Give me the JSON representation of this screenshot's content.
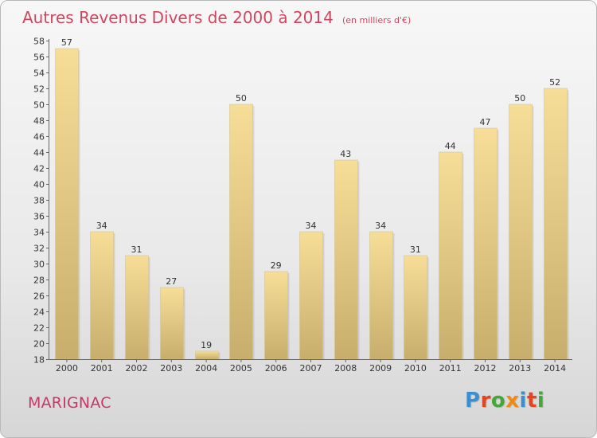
{
  "header": {
    "title": "Autres Revenus Divers de 2000 à 2014",
    "subtitle": "(en milliers d'€)"
  },
  "footer": {
    "place": "MARIGNAC",
    "logo_text": "Proxiti"
  },
  "colors": {
    "title": "#d0465f",
    "place": "#c9366a",
    "bar_light": "#f6de98",
    "bar_dark": "#c8ae6c",
    "logo": [
      "#3b8fd0",
      "#e2451f",
      "#47a63b",
      "#f08b12",
      "#3b8fd0",
      "#e2451f",
      "#47a63b"
    ]
  },
  "chart_data": {
    "type": "bar",
    "categories": [
      "2000",
      "2001",
      "2002",
      "2003",
      "2004",
      "2005",
      "2006",
      "2007",
      "2008",
      "2009",
      "2010",
      "2011",
      "2012",
      "2013",
      "2014"
    ],
    "values": [
      57,
      34,
      31,
      27,
      19,
      50,
      29,
      34,
      43,
      34,
      31,
      44,
      47,
      50,
      52
    ],
    "ylim": [
      18,
      58
    ],
    "ytick_step": 2,
    "grid": false,
    "data_labels": true
  }
}
